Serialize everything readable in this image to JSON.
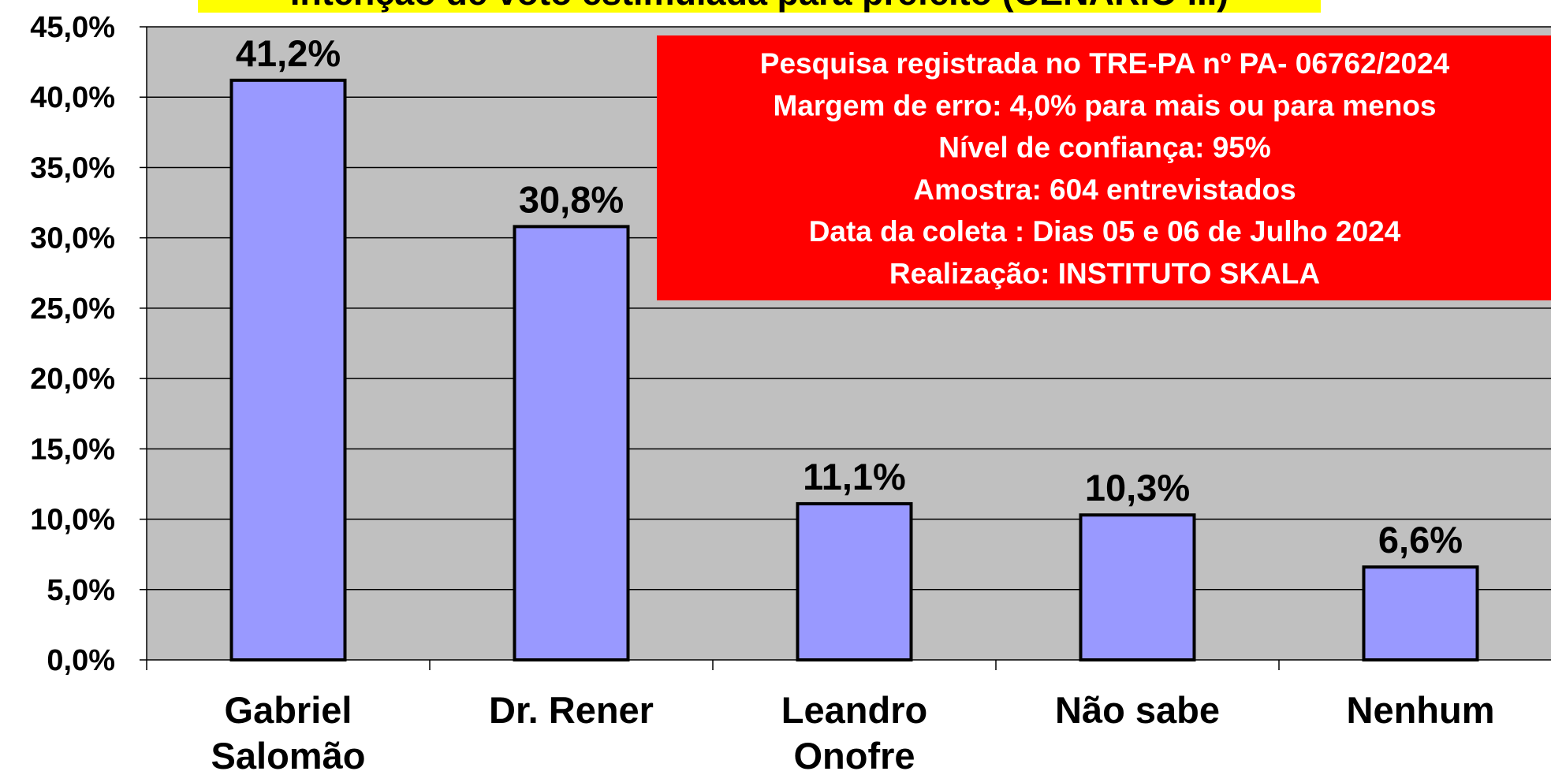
{
  "chart_data": {
    "type": "bar",
    "title": "Intenção de voto estimulada para prefeito (CENÁRIO III)",
    "categories": [
      [
        "Gabriel",
        "Salomão"
      ],
      [
        "Dr. Rener"
      ],
      [
        "Leandro",
        "Onofre"
      ],
      [
        "Não sabe"
      ],
      [
        "Nenhum"
      ]
    ],
    "values": [
      41.2,
      30.8,
      11.1,
      10.3,
      6.6
    ],
    "value_labels": [
      "41,2%",
      "30,8%",
      "11,1%",
      "10,3%",
      "6,6%"
    ],
    "color": "#9999ff",
    "ylim": [
      0,
      45
    ],
    "yticks": [
      {
        "value": 0,
        "label": "0,0%"
      },
      {
        "value": 5,
        "label": "5,0%"
      },
      {
        "value": 10,
        "label": "10,0%"
      },
      {
        "value": 15,
        "label": "15,0%"
      },
      {
        "value": 20,
        "label": "20,0%"
      },
      {
        "value": 25,
        "label": "25,0%"
      },
      {
        "value": 30,
        "label": "30,0%"
      },
      {
        "value": 35,
        "label": "35,0%"
      },
      {
        "value": 40,
        "label": "40,0%"
      },
      {
        "value": 45,
        "label": "45,0%"
      }
    ],
    "grid": true,
    "annotation": [
      "Pesquisa registrada no TRE-PA nº PA- 06762/2024",
      "Margem de erro: 4,0% para mais ou para menos",
      "Nível de confiança: 95%",
      "Amostra: 604 entrevistados",
      "Data da coleta : Dias 05 e 06 de Julho 2024",
      "Realização: INSTITUTO SKALA"
    ]
  }
}
